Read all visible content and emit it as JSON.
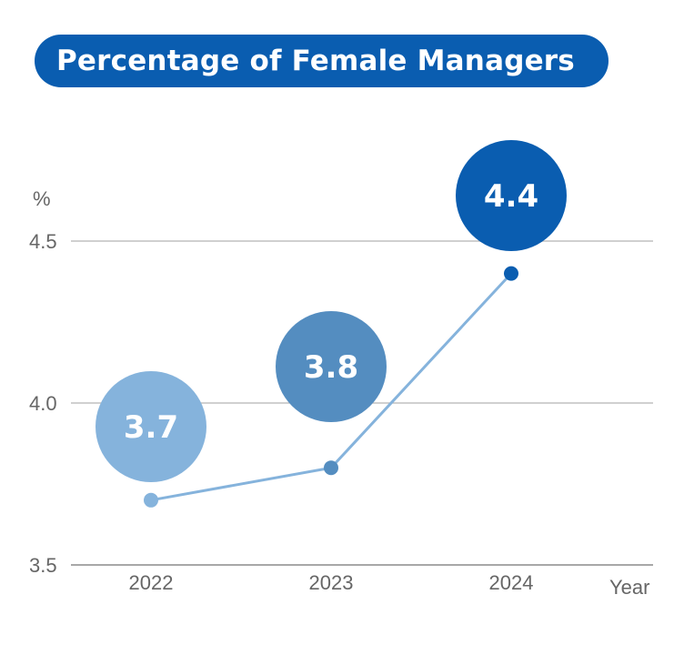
{
  "title": "Percentage of Female Managers",
  "chart_data": {
    "type": "line",
    "title": "Percentage of Female Managers",
    "x": [
      "2022",
      "2023",
      "2024"
    ],
    "series": [
      {
        "values": [
          3.7,
          3.8,
          4.4
        ]
      }
    ],
    "data_labels": [
      "3.7",
      "3.8",
      "4.4"
    ],
    "ylabel": "%",
    "xlabel": "Year",
    "ylim": [
      3.5,
      4.5
    ],
    "y_ticks": [
      "3.5",
      "4.0",
      "4.5"
    ],
    "grid": "horizontal",
    "colors": {
      "title_bg": "#0a5db0",
      "line": "#85b3dc",
      "bubbles": [
        "#85b3dc",
        "#548dc0",
        "#0a5db0"
      ],
      "points": [
        "#85b3dc",
        "#548dc0",
        "#0a5db0"
      ],
      "grid": "#b4b4b4",
      "axis": "#8c8c8c"
    }
  }
}
